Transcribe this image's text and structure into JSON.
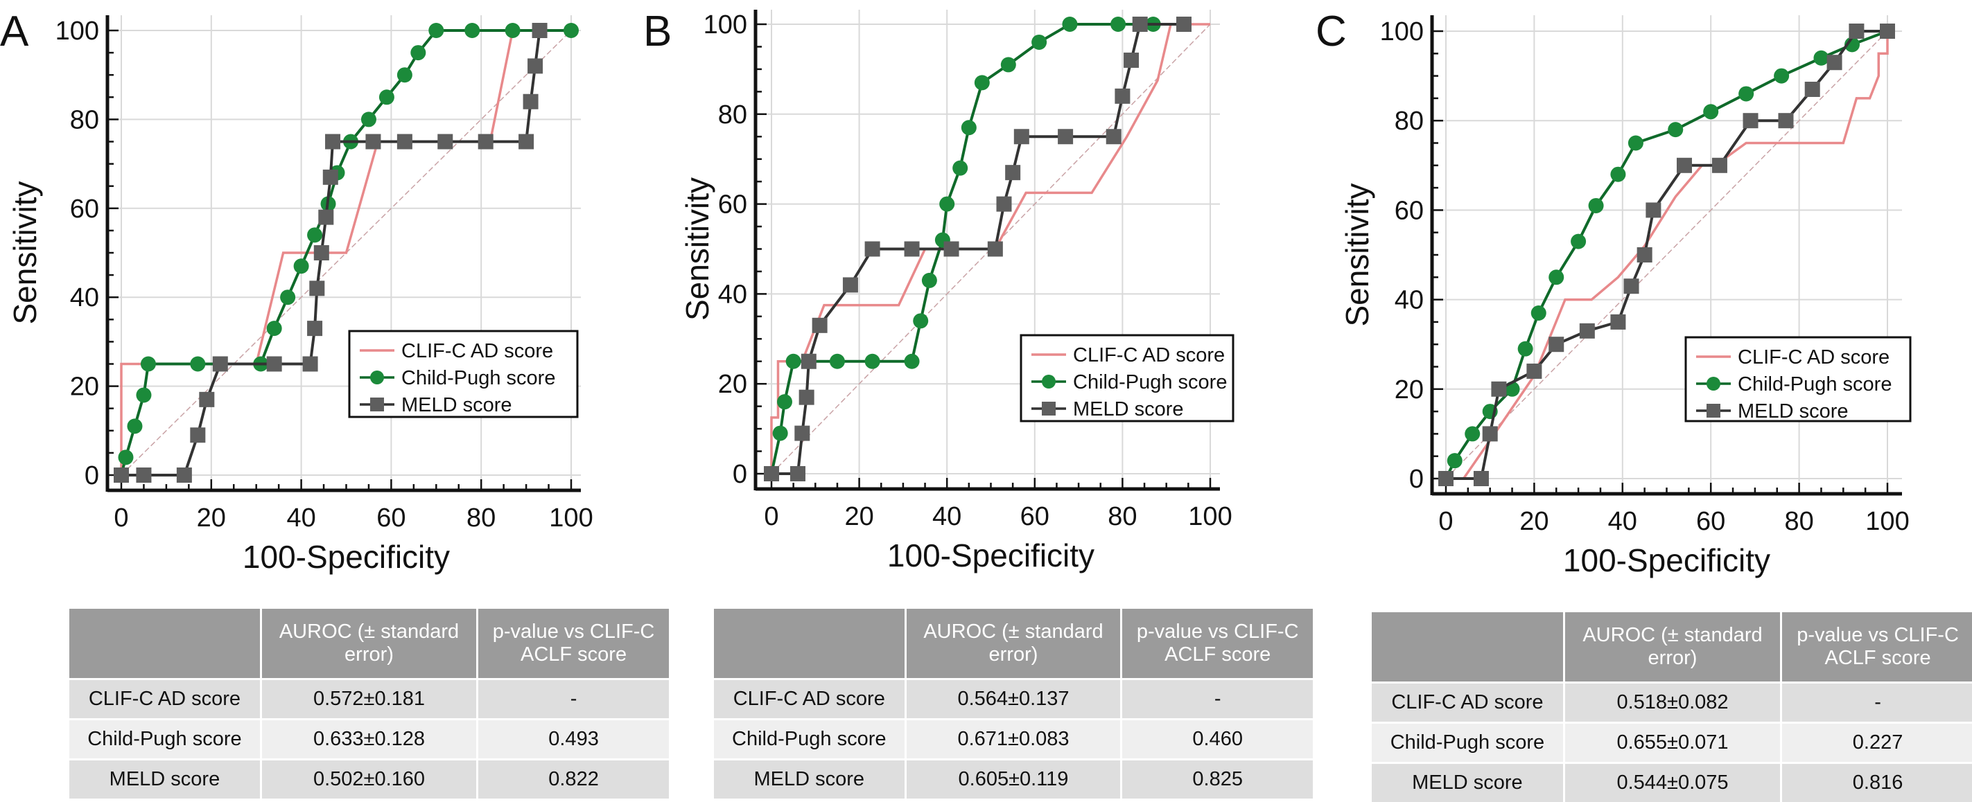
{
  "colors": {
    "clif": "#e8898b",
    "child_pugh": "#1b8a3a",
    "meld": "#5e5e5e",
    "grid": "#d9d9d9",
    "table_header": "#9b9b9b"
  },
  "chart_data": [
    {
      "panel": "A",
      "type": "line",
      "xlabel": "100-Specificity",
      "ylabel": "Sensitivity",
      "xlim": [
        0,
        100
      ],
      "ylim": [
        0,
        100
      ],
      "xticks": [
        0,
        20,
        40,
        60,
        80,
        100
      ],
      "yticks": [
        0,
        20,
        40,
        60,
        80,
        100
      ],
      "grid": true,
      "legend_position": "lower-right",
      "reference_diagonal": true,
      "series": [
        {
          "name": "CLIF-C AD score",
          "marker": "none",
          "points": [
            [
              0,
              0
            ],
            [
              0,
              25
            ],
            [
              30,
              25
            ],
            [
              36,
              50
            ],
            [
              50,
              50
            ],
            [
              57,
              75
            ],
            [
              82,
              75
            ],
            [
              87,
              100
            ],
            [
              100,
              100
            ]
          ]
        },
        {
          "name": "Child-Pugh score",
          "marker": "circle",
          "points": [
            [
              0,
              0
            ],
            [
              1,
              4
            ],
            [
              3,
              11
            ],
            [
              5,
              18
            ],
            [
              6,
              25
            ],
            [
              17,
              25
            ],
            [
              31,
              25
            ],
            [
              34,
              33
            ],
            [
              37,
              40
            ],
            [
              40,
              47
            ],
            [
              43,
              54
            ],
            [
              46,
              61
            ],
            [
              48,
              68
            ],
            [
              51,
              75
            ],
            [
              55,
              80
            ],
            [
              59,
              85
            ],
            [
              63,
              90
            ],
            [
              66,
              95
            ],
            [
              70,
              100
            ],
            [
              78,
              100
            ],
            [
              87,
              100
            ],
            [
              100,
              100
            ]
          ]
        },
        {
          "name": "MELD score",
          "marker": "square",
          "points": [
            [
              0,
              0
            ],
            [
              5,
              0
            ],
            [
              14,
              0
            ],
            [
              17,
              9
            ],
            [
              19,
              17
            ],
            [
              22,
              25
            ],
            [
              34,
              25
            ],
            [
              42,
              25
            ],
            [
              43,
              33
            ],
            [
              43.5,
              42
            ],
            [
              44.5,
              50
            ],
            [
              45.5,
              58
            ],
            [
              46.5,
              67
            ],
            [
              47,
              75
            ],
            [
              56,
              75
            ],
            [
              63,
              75
            ],
            [
              72,
              75
            ],
            [
              81,
              75
            ],
            [
              90,
              75
            ],
            [
              91,
              84
            ],
            [
              92,
              92
            ],
            [
              93,
              100
            ]
          ]
        }
      ]
    },
    {
      "panel": "B",
      "type": "line",
      "xlabel": "100-Specificity",
      "ylabel": "Sensitivity",
      "xlim": [
        0,
        100
      ],
      "ylim": [
        0,
        100
      ],
      "xticks": [
        0,
        20,
        40,
        60,
        80,
        100
      ],
      "yticks": [
        0,
        20,
        40,
        60,
        80,
        100
      ],
      "grid": true,
      "legend_position": "lower-right",
      "reference_diagonal": true,
      "series": [
        {
          "name": "CLIF-C AD score",
          "marker": "none",
          "points": [
            [
              0,
              0
            ],
            [
              0,
              12.5
            ],
            [
              1.5,
              12.5
            ],
            [
              1.5,
              25
            ],
            [
              7,
              25
            ],
            [
              12,
              37.5
            ],
            [
              29,
              37.5
            ],
            [
              35,
              50
            ],
            [
              51,
              50
            ],
            [
              58,
              62.5
            ],
            [
              73,
              62.5
            ],
            [
              81,
              75
            ],
            [
              88,
              87.5
            ],
            [
              91,
              100
            ],
            [
              100,
              100
            ]
          ]
        },
        {
          "name": "Child-Pugh score",
          "marker": "circle",
          "points": [
            [
              0,
              0
            ],
            [
              2,
              9
            ],
            [
              3,
              16
            ],
            [
              5,
              25
            ],
            [
              15,
              25
            ],
            [
              23,
              25
            ],
            [
              32,
              25
            ],
            [
              34,
              34
            ],
            [
              36,
              43
            ],
            [
              39,
              52
            ],
            [
              40,
              60
            ],
            [
              43,
              68
            ],
            [
              45,
              77
            ],
            [
              48,
              87
            ],
            [
              54,
              91
            ],
            [
              61,
              96
            ],
            [
              68,
              100
            ],
            [
              79,
              100
            ],
            [
              87,
              100
            ]
          ]
        },
        {
          "name": "MELD score",
          "marker": "square",
          "points": [
            [
              0,
              0
            ],
            [
              6,
              0
            ],
            [
              7,
              9
            ],
            [
              8,
              17
            ],
            [
              8.5,
              25
            ],
            [
              11,
              33
            ],
            [
              18,
              42
            ],
            [
              23,
              50
            ],
            [
              32,
              50
            ],
            [
              41,
              50
            ],
            [
              51,
              50
            ],
            [
              53,
              60
            ],
            [
              55,
              67
            ],
            [
              57,
              75
            ],
            [
              67,
              75
            ],
            [
              78,
              75
            ],
            [
              80,
              84
            ],
            [
              82,
              92
            ],
            [
              84,
              100
            ],
            [
              94,
              100
            ]
          ]
        }
      ]
    },
    {
      "panel": "C",
      "type": "line",
      "xlabel": "100-Specificity",
      "ylabel": "Sensitivity",
      "xlim": [
        0,
        100
      ],
      "ylim": [
        0,
        100
      ],
      "xticks": [
        0,
        20,
        40,
        60,
        80,
        100
      ],
      "yticks": [
        0,
        20,
        40,
        60,
        80,
        100
      ],
      "grid": true,
      "legend_position": "lower-right",
      "reference_diagonal": true,
      "series": [
        {
          "name": "CLIF-C AD score",
          "marker": "none",
          "points": [
            [
              0,
              0
            ],
            [
              4,
              0
            ],
            [
              11,
              10
            ],
            [
              20,
              23
            ],
            [
              27,
              40
            ],
            [
              33,
              40
            ],
            [
              39,
              45
            ],
            [
              45,
              52
            ],
            [
              52,
              63
            ],
            [
              58,
              70
            ],
            [
              61,
              70
            ],
            [
              68,
              75
            ],
            [
              90,
              75
            ],
            [
              93,
              85
            ],
            [
              96,
              85
            ],
            [
              98,
              90
            ],
            [
              98,
              95
            ],
            [
              100,
              95
            ],
            [
              100,
              100
            ]
          ]
        },
        {
          "name": "Child-Pugh score",
          "marker": "circle",
          "points": [
            [
              0,
              0
            ],
            [
              2,
              4
            ],
            [
              6,
              10
            ],
            [
              10,
              15
            ],
            [
              15,
              20
            ],
            [
              18,
              29
            ],
            [
              21,
              37
            ],
            [
              25,
              45
            ],
            [
              30,
              53
            ],
            [
              34,
              61
            ],
            [
              39,
              68
            ],
            [
              43,
              75
            ],
            [
              52,
              78
            ],
            [
              60,
              82
            ],
            [
              68,
              86
            ],
            [
              76,
              90
            ],
            [
              85,
              94
            ],
            [
              92,
              97
            ],
            [
              100,
              100
            ]
          ]
        },
        {
          "name": "MELD score",
          "marker": "square",
          "points": [
            [
              0,
              0
            ],
            [
              8,
              0
            ],
            [
              10,
              10
            ],
            [
              12,
              20
            ],
            [
              20,
              24
            ],
            [
              25,
              30
            ],
            [
              32,
              33
            ],
            [
              39,
              35
            ],
            [
              42,
              43
            ],
            [
              45,
              50
            ],
            [
              47,
              60
            ],
            [
              54,
              70
            ],
            [
              62,
              70
            ],
            [
              69,
              80
            ],
            [
              77,
              80
            ],
            [
              83,
              87
            ],
            [
              88,
              93
            ],
            [
              93,
              100
            ],
            [
              100,
              100
            ]
          ]
        }
      ]
    }
  ],
  "tables": [
    {
      "panel": "A",
      "headers": [
        "",
        "AUROC (± standard error)",
        "p-value vs CLIF-C ACLF score"
      ],
      "rows": [
        [
          "CLIF-C AD score",
          "0.572±0.181",
          "-"
        ],
        [
          "Child-Pugh score",
          "0.633±0.128",
          "0.493"
        ],
        [
          "MELD score",
          "0.502±0.160",
          "0.822"
        ]
      ]
    },
    {
      "panel": "B",
      "headers": [
        "",
        "AUROC (± standard error)",
        "p-value vs CLIF-C ACLF score"
      ],
      "rows": [
        [
          "CLIF-C AD score",
          "0.564±0.137",
          "-"
        ],
        [
          "Child-Pugh score",
          "0.671±0.083",
          "0.460"
        ],
        [
          "MELD score",
          "0.605±0.119",
          "0.825"
        ]
      ]
    },
    {
      "panel": "C",
      "headers": [
        "",
        "AUROC (± standard error)",
        "p-value vs CLIF-C ACLF score"
      ],
      "rows": [
        [
          "CLIF-C AD score",
          "0.518±0.082",
          "-"
        ],
        [
          "Child-Pugh score",
          "0.655±0.071",
          "0.227"
        ],
        [
          "MELD score",
          "0.544±0.075",
          "0.816"
        ]
      ]
    }
  ]
}
